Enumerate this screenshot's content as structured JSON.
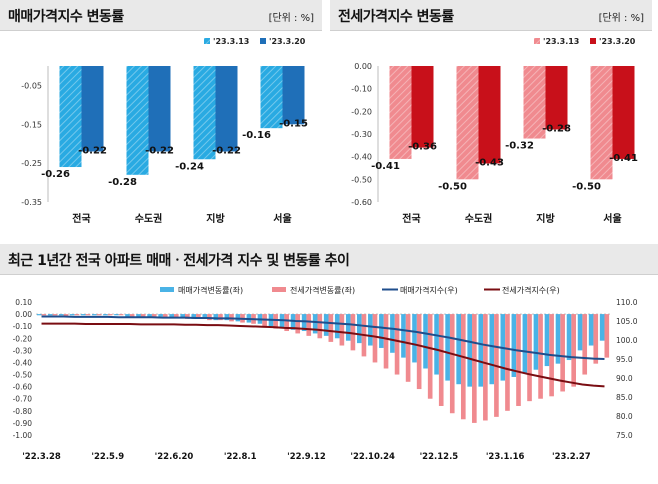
{
  "left_panel": {
    "title": "매매가격지수 변동률",
    "unit": "[단위 : %]"
  },
  "right_panel": {
    "title": "전세가격지수 변동률",
    "unit": "[단위 : %]"
  },
  "bottom_panel": {
    "title": "최근 1년간 전국 아파트 매매ㆍ전세가격 지수 및 변동률 추이"
  },
  "colors": {
    "sale_prev": "#29aae2",
    "sale_curr": "#1f6fb8",
    "jeonse_prev": "#f08a8f",
    "jeonse_curr": "#c8101a",
    "sale_index_line": "#1f4e8c",
    "jeonse_index_line": "#7a0d12",
    "sale_rate_bar": "#4ab3e6",
    "jeonse_rate_bar": "#f08a8f"
  },
  "chart_data": [
    {
      "type": "bar",
      "title": "매매가격지수 변동률",
      "categories": [
        "전국",
        "수도권",
        "지방",
        "서울"
      ],
      "series": [
        {
          "name": "'23.3.13",
          "values": [
            -0.26,
            -0.28,
            -0.24,
            -0.16
          ]
        },
        {
          "name": "'23.3.20",
          "values": [
            -0.22,
            -0.22,
            -0.22,
            -0.15
          ]
        }
      ],
      "value_labels": [
        [
          "-0.26",
          "-0.28",
          "-0.24",
          "-0.16"
        ],
        [
          "-0.22",
          "-0.22",
          "-0.22",
          "-0.15"
        ]
      ],
      "yticks": [
        -0.05,
        -0.15,
        -0.25,
        -0.35
      ],
      "ytick_labels": [
        "-0.05",
        "-0.15",
        "-0.25",
        "-0.35"
      ],
      "ylim": [
        -0.35,
        0.0
      ],
      "legend_position": "top-right"
    },
    {
      "type": "bar",
      "title": "전세가격지수 변동률",
      "categories": [
        "전국",
        "수도권",
        "지방",
        "서울"
      ],
      "series": [
        {
          "name": "'23.3.13",
          "values": [
            -0.41,
            -0.5,
            -0.32,
            -0.5
          ]
        },
        {
          "name": "'23.3.20",
          "values": [
            -0.36,
            -0.43,
            -0.28,
            -0.41
          ]
        }
      ],
      "value_labels": [
        [
          "-0.41",
          "-0.50",
          "-0.32",
          "-0.50"
        ],
        [
          "-0.36",
          "-0.43",
          "-0.28",
          "-0.41"
        ]
      ],
      "yticks": [
        0.0,
        -0.1,
        -0.2,
        -0.3,
        -0.4,
        -0.5,
        -0.6
      ],
      "ytick_labels": [
        "0.00",
        "-0.10",
        "-0.20",
        "-0.30",
        "-0.40",
        "-0.50",
        "-0.60"
      ],
      "ylim": [
        -0.6,
        0.0
      ],
      "legend_position": "top-right"
    },
    {
      "type": "bar",
      "title": "최근 1년간 전국 아파트 매매ㆍ전세가격 지수 및 변동률 추이",
      "x_tick_labels": [
        "'22.3.28",
        "'22.5.9",
        "'22.6.20",
        "'22.8.1",
        "'22.9.12",
        "'22.10.24",
        "'22.12.5",
        "'23.1.16",
        "'23.2.27"
      ],
      "x_tick_positions": [
        0,
        6,
        12,
        18,
        24,
        30,
        36,
        42,
        48
      ],
      "n_weeks": 52,
      "series": [
        {
          "name": "매매가격변동률(좌)",
          "kind": "bar",
          "axis": "left",
          "values": [
            -0.01,
            -0.01,
            -0.01,
            -0.01,
            -0.01,
            -0.01,
            -0.01,
            -0.01,
            -0.02,
            -0.02,
            -0.02,
            -0.02,
            -0.03,
            -0.03,
            -0.04,
            -0.04,
            -0.05,
            -0.05,
            -0.06,
            -0.07,
            -0.08,
            -0.1,
            -0.11,
            -0.13,
            -0.14,
            -0.16,
            -0.18,
            -0.2,
            -0.22,
            -0.24,
            -0.26,
            -0.28,
            -0.32,
            -0.36,
            -0.4,
            -0.45,
            -0.5,
            -0.55,
            -0.58,
            -0.6,
            -0.6,
            -0.58,
            -0.55,
            -0.52,
            -0.49,
            -0.46,
            -0.43,
            -0.41,
            -0.38,
            -0.3,
            -0.26,
            -0.22
          ]
        },
        {
          "name": "전세가격변동률(좌)",
          "kind": "bar",
          "axis": "left",
          "values": [
            -0.01,
            -0.01,
            -0.02,
            -0.01,
            -0.01,
            -0.01,
            -0.01,
            -0.01,
            -0.02,
            -0.02,
            -0.02,
            -0.03,
            -0.03,
            -0.04,
            -0.04,
            -0.05,
            -0.05,
            -0.06,
            -0.07,
            -0.08,
            -0.1,
            -0.12,
            -0.14,
            -0.16,
            -0.18,
            -0.2,
            -0.23,
            -0.26,
            -0.3,
            -0.35,
            -0.4,
            -0.45,
            -0.5,
            -0.56,
            -0.62,
            -0.7,
            -0.76,
            -0.82,
            -0.87,
            -0.9,
            -0.88,
            -0.85,
            -0.8,
            -0.76,
            -0.72,
            -0.7,
            -0.68,
            -0.64,
            -0.6,
            -0.5,
            -0.41,
            -0.36
          ]
        },
        {
          "name": "매매가격지수(우)",
          "kind": "line",
          "axis": "right",
          "values": [
            106.2,
            106.2,
            106.2,
            106.1,
            106.1,
            106.1,
            106.1,
            106.0,
            106.0,
            106.0,
            106.0,
            105.9,
            105.9,
            105.9,
            105.8,
            105.8,
            105.7,
            105.7,
            105.6,
            105.5,
            105.4,
            105.3,
            105.2,
            105.0,
            104.9,
            104.7,
            104.5,
            104.3,
            104.1,
            103.8,
            103.5,
            103.2,
            102.9,
            102.5,
            102.1,
            101.6,
            101.1,
            100.6,
            100.0,
            99.4,
            98.8,
            98.3,
            97.8,
            97.3,
            96.9,
            96.5,
            96.1,
            95.8,
            95.5,
            95.3,
            95.1,
            95.0
          ]
        },
        {
          "name": "전세가격지수(우)",
          "kind": "line",
          "axis": "right",
          "values": [
            104.3,
            104.3,
            104.3,
            104.3,
            104.2,
            104.2,
            104.2,
            104.2,
            104.2,
            104.1,
            104.1,
            104.1,
            104.1,
            104.0,
            104.0,
            103.9,
            103.9,
            103.8,
            103.7,
            103.6,
            103.5,
            103.4,
            103.2,
            103.1,
            102.9,
            102.7,
            102.4,
            102.1,
            101.8,
            101.4,
            101.0,
            100.5,
            99.9,
            99.3,
            98.7,
            98.0,
            97.3,
            96.5,
            95.7,
            94.9,
            94.1,
            93.3,
            92.5,
            91.8,
            91.1,
            90.5,
            89.9,
            89.3,
            88.8,
            88.3,
            88.0,
            87.8
          ]
        }
      ],
      "y_left": {
        "ylim": [
          -1.0,
          0.1
        ],
        "ticks": [
          0.1,
          0.0,
          -0.1,
          -0.2,
          -0.3,
          -0.4,
          -0.5,
          -0.6,
          -0.7,
          -0.8,
          -0.9,
          -1.0
        ],
        "labels": [
          "0.10",
          "0.00",
          "-0.10",
          "-0.20",
          "-0.30",
          "-0.40",
          "-0.50",
          "-0.60",
          "-0.70",
          "-0.80",
          "-0.90",
          "-1.00"
        ]
      },
      "y_right": {
        "ylim": [
          75.0,
          110.0
        ],
        "ticks": [
          110,
          105,
          100,
          95,
          90,
          85,
          80,
          75
        ],
        "labels": [
          "110.0",
          "105.0",
          "100.0",
          "95.0",
          "90.0",
          "85.0",
          "80.0",
          "75.0"
        ]
      },
      "legend_position": "top"
    }
  ]
}
